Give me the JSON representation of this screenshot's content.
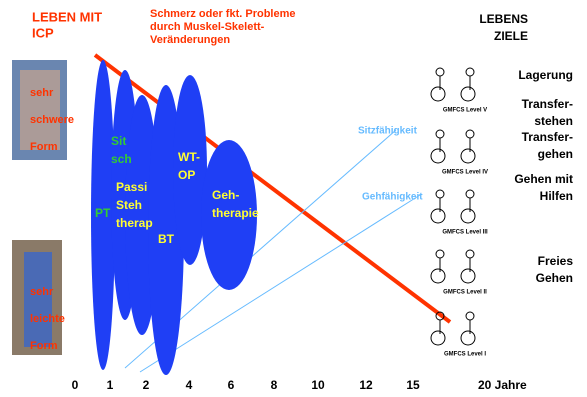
{
  "header": {
    "left": [
      "LEBEN MIT",
      "ICP"
    ],
    "center": [
      "Schmerz oder fkt. Probleme",
      "durch Muskel-Skelett-",
      "Veränderungen"
    ],
    "right": [
      "LEBENS",
      "ZIELE"
    ]
  },
  "photos": [
    {
      "label": [
        "sehr",
        "schwere",
        "Form"
      ]
    },
    {
      "label": [
        "sehr",
        "leichte",
        "Form"
      ]
    }
  ],
  "therapies": [
    {
      "label": [
        "PT"
      ]
    },
    {
      "label": [
        "Sit",
        "sch"
      ]
    },
    {
      "label": [
        "Passi",
        "Steh",
        "therap"
      ]
    },
    {
      "label": [
        "BT"
      ]
    },
    {
      "label": [
        "WT-",
        "OP"
      ]
    },
    {
      "label": [
        "Geh-",
        "therapie"
      ]
    }
  ],
  "lines": {
    "sitting": "Sitzfähigkeit",
    "walking": "Gehfähigkeit"
  },
  "goals": [
    {
      "label": [
        "Lagerung"
      ]
    },
    {
      "label": [
        "Transfer-",
        "stehen"
      ]
    },
    {
      "label": [
        "Transfer-",
        "gehen"
      ]
    },
    {
      "label": [
        "Gehen mit",
        "Hilfen"
      ]
    },
    {
      "label": [
        "Freies",
        "Gehen"
      ]
    }
  ],
  "levels": [
    "GMFCS Level V",
    "GMFCS Level IV",
    "GMFCS Level III",
    "GMFCS Level II",
    "GMFCS Level I"
  ],
  "axis_labels": [
    "0",
    "1",
    "2",
    "4",
    "6",
    "8",
    "10",
    "12",
    "15",
    "20 Jahre"
  ]
}
